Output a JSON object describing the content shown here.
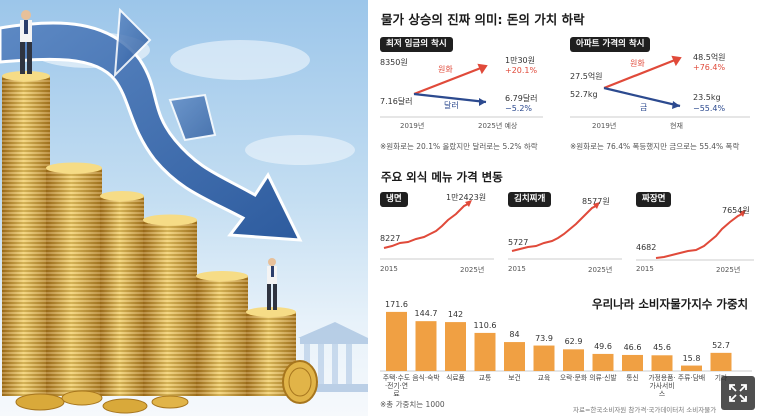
{
  "title": "물가 상승의 진짜 의미: 돈의 가치 하락",
  "panel_wage": {
    "label": "최저 임금의 착시",
    "start_won": "8350원",
    "start_usd": "7.16달러",
    "series_won": "원화",
    "series_usd": "달러",
    "end_won": "1만30원",
    "end_won_change": "+20.1%",
    "end_usd": "6.79달러",
    "end_usd_change": "−5.2%",
    "x_start": "2019년",
    "x_end": "2025년 예상",
    "note": "※원화로는 20.1% 올랐지만 달러로는 5.2% 하락"
  },
  "panel_apt": {
    "label": "아파트 가격의 착시",
    "start_won": "27.5억원",
    "start_gold": "52.7kg",
    "series_won": "원화",
    "series_gold": "금",
    "end_won": "48.5억원",
    "end_won_change": "+76.4%",
    "end_gold": "23.5kg",
    "end_gold_change": "−55.4%",
    "x_start": "2019년",
    "x_end": "현재",
    "note": "※원화로는 76.4% 폭등했지만 금으로는 55.4% 폭락"
  },
  "menu_section": {
    "title": "주요 외식 메뉴 가격 변동",
    "items": [
      {
        "label": "냉면",
        "start": "8227",
        "end": "1만2423원",
        "x_start": "2015",
        "x_end": "2025년"
      },
      {
        "label": "김치찌개",
        "start": "5727",
        "end": "8577원",
        "x_start": "2015",
        "x_end": "2025년"
      },
      {
        "label": "짜장면",
        "start": "4682",
        "end": "7654원",
        "x_start": "2015",
        "x_end": "2025년"
      }
    ]
  },
  "chart_data": {
    "type": "bar",
    "title": "우리나라 소비자물가지수 가중치",
    "categories": [
      "주택·수도·전기·연료",
      "음식·숙박",
      "식료품",
      "교통",
      "보건",
      "교육",
      "오락·문화",
      "의류·신발",
      "통신",
      "가정용품·가사서비스",
      "주류·담배",
      "기타"
    ],
    "display_labels": [
      "171.6",
      "144.7",
      "142",
      "110.6",
      "84",
      "73.9",
      "62.9",
      "49.6",
      "46.6",
      "45.6",
      "15.8",
      "52.7"
    ],
    "values": [
      171.6,
      144.7,
      142,
      110.6,
      84,
      73.9,
      62.9,
      49.6,
      46.6,
      45.6,
      15.8,
      52.7
    ],
    "ylim": [
      0,
      180
    ],
    "bar_color": "#f0a043"
  },
  "cpi_note": "※총 가중치는 1000",
  "source": "자료=한국소비자원 참가격·국가데이터처 소비자물가",
  "colors": {
    "won": "#e04a3a",
    "alt": "#2c4a8f",
    "menu_line": "#e04a3a",
    "coin": "#d9a93a"
  },
  "expand_icon": "expand-icon"
}
